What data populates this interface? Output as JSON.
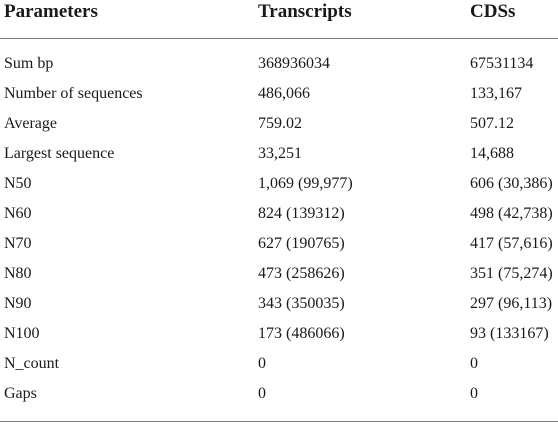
{
  "table": {
    "headers": [
      "Parameters",
      "Transcripts",
      "CDSs"
    ],
    "rows": [
      [
        "Sum bp",
        "368936034",
        "67531134"
      ],
      [
        "Number of sequences",
        "486,066",
        "133,167"
      ],
      [
        "Average",
        "759.02",
        "507.12"
      ],
      [
        "Largest sequence",
        "33,251",
        "14,688"
      ],
      [
        "N50",
        "1,069 (99,977)",
        "606 (30,386)"
      ],
      [
        "N60",
        "824 (139312)",
        "498 (42,738)"
      ],
      [
        "N70",
        "627 (190765)",
        "417 (57,616)"
      ],
      [
        "N80",
        "473 (258626)",
        "351 (75,274)"
      ],
      [
        "N90",
        "343 (350035)",
        "297 (96,113)"
      ],
      [
        "N100",
        "173 (486066)",
        "93 (133167)"
      ],
      [
        "N_count",
        "0",
        "0"
      ],
      [
        "Gaps",
        "0",
        "0"
      ]
    ]
  }
}
